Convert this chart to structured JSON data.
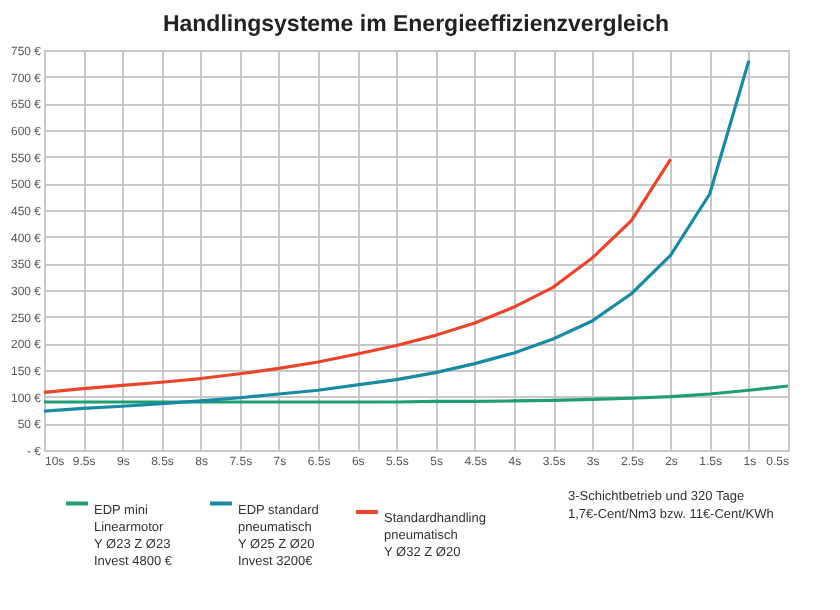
{
  "chart_data": {
    "type": "line",
    "title": "Handlingsysteme im Energieeffizienzvergleich",
    "categories": [
      "10s",
      "9.5s",
      "9s",
      "8.5s",
      "8s",
      "7.5s",
      "7s",
      "6.5s",
      "6s",
      "5.5s",
      "5s",
      "4.5s",
      "4s",
      "3.5s",
      "3s",
      "2.5s",
      "2s",
      "1.5s",
      "1s",
      "0.5s"
    ],
    "series": [
      {
        "name": "EDP mini\nLinearmotor\nY Ø23 Z Ø23\nInvest 4800 €",
        "color": "#1f9e73",
        "values": [
          90,
          90,
          90,
          90,
          90,
          90,
          90,
          90,
          90,
          90,
          91,
          91,
          92,
          93,
          95,
          97,
          100,
          105,
          112,
          120
        ]
      },
      {
        "name": "EDP standard\npneumatisch\nY Ø25 Z Ø20\nInvest 3200€",
        "color": "#1a8aa0",
        "values": [
          73,
          78,
          82,
          87,
          92,
          98,
          105,
          112,
          122,
          132,
          145,
          162,
          182,
          208,
          242,
          293,
          365,
          480,
          730,
          null
        ]
      },
      {
        "name": "Standardhandling\npneumatisch\nY Ø32 Z Ø20",
        "color": "#e8452c",
        "values": [
          108,
          115,
          121,
          127,
          134,
          143,
          153,
          165,
          180,
          196,
          215,
          238,
          268,
          305,
          360,
          430,
          545,
          null,
          null,
          null
        ]
      }
    ],
    "ylim": [
      0,
      750
    ],
    "yticks": [
      {
        "value": 0,
        "label": "- €"
      },
      {
        "value": 50,
        "label": "50 €"
      },
      {
        "value": 100,
        "label": "100 €"
      },
      {
        "value": 150,
        "label": "150 €"
      },
      {
        "value": 200,
        "label": "200 €"
      },
      {
        "value": 250,
        "label": "250 €"
      },
      {
        "value": 300,
        "label": "300 €"
      },
      {
        "value": 350,
        "label": "350 €"
      },
      {
        "value": 400,
        "label": "400 €"
      },
      {
        "value": 450,
        "label": "450 €"
      },
      {
        "value": 500,
        "label": "500 €"
      },
      {
        "value": 550,
        "label": "550 €"
      },
      {
        "value": 600,
        "label": "600 €"
      },
      {
        "value": 650,
        "label": "650 €"
      },
      {
        "value": 700,
        "label": "700 €"
      },
      {
        "value": 750,
        "label": "750 €"
      }
    ],
    "grid": true,
    "legend": "bottom",
    "marker": "none",
    "line_style": "solid",
    "annotations": [
      "3-Schichtbetrieb und 320 Tage\n1,7€-Cent/Nm3 bzw. 11€-Cent/KWh"
    ]
  }
}
